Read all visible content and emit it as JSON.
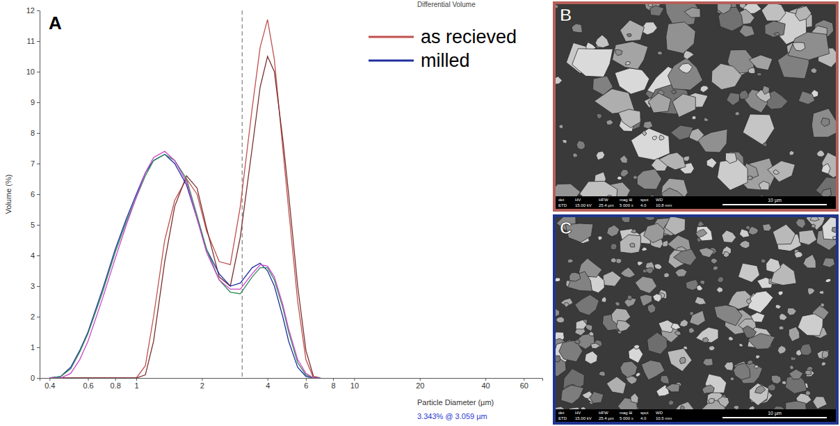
{
  "chart_data": {
    "type": "line",
    "panel_label": "A",
    "title": "Differential Volume",
    "x_label": "Particle Diameter (µm)",
    "y_label": "Volume (%)",
    "log": "x",
    "grid": false,
    "legend": "top-right",
    "xlim": [
      0.36,
      73
    ],
    "ylim": [
      0,
      12
    ],
    "xticks": [
      0.4,
      0.6,
      0.8,
      1,
      2,
      4,
      6,
      8,
      10,
      20,
      40,
      60
    ],
    "yticks": [
      0,
      1,
      2,
      3,
      4,
      5,
      6,
      7,
      8,
      9,
      10,
      11,
      12
    ],
    "x": [
      0.4,
      0.45,
      0.5,
      0.55,
      0.6,
      0.7,
      0.8,
      0.9,
      1.0,
      1.1,
      1.2,
      1.35,
      1.5,
      1.7,
      1.9,
      2.1,
      2.4,
      2.7,
      3.0,
      3.4,
      3.7,
      4.0,
      4.3,
      4.7,
      5.0,
      5.5,
      6.0,
      6.5,
      7.0
    ],
    "series": [
      {
        "name": "as recieved",
        "color": "#c0504d",
        "values": [
          0,
          0,
          0,
          0,
          0,
          0,
          0,
          0,
          0,
          0.4,
          2.0,
          4.5,
          5.8,
          6.5,
          6.0,
          4.8,
          3.8,
          3.7,
          5.6,
          8.8,
          10.8,
          11.7,
          10.4,
          7.5,
          5.5,
          2.5,
          0.6,
          0,
          0
        ]
      },
      {
        "color": "#7a2e2e",
        "values": [
          0,
          0,
          0,
          0,
          0,
          0,
          0,
          0,
          0,
          0.1,
          1.2,
          3.8,
          5.6,
          6.6,
          6.2,
          4.9,
          3.3,
          3.0,
          4.6,
          7.5,
          9.5,
          10.5,
          10.0,
          7.8,
          6.0,
          3.0,
          0.9,
          0.05,
          0
        ]
      },
      {
        "name": "milled",
        "color": "#1f2fa0",
        "values": [
          0,
          0.05,
          0.35,
          0.9,
          1.5,
          2.9,
          4.2,
          5.2,
          6.0,
          6.7,
          7.1,
          7.3,
          7.0,
          6.3,
          5.2,
          4.2,
          3.4,
          3.0,
          3.1,
          3.6,
          3.75,
          3.5,
          3.0,
          2.0,
          1.2,
          0.35,
          0.05,
          0,
          0
        ]
      },
      {
        "color": "#2e8b57",
        "values": [
          0,
          0.05,
          0.3,
          0.85,
          1.45,
          2.8,
          4.1,
          5.1,
          5.9,
          6.6,
          7.1,
          7.3,
          7.1,
          6.5,
          5.3,
          4.2,
          3.2,
          2.8,
          2.75,
          3.3,
          3.6,
          3.6,
          3.2,
          2.3,
          1.5,
          0.5,
          0.1,
          0,
          0
        ]
      },
      {
        "color": "#cc44cc",
        "values": [
          0,
          0,
          0.15,
          0.6,
          1.2,
          2.6,
          3.9,
          5.0,
          5.9,
          6.7,
          7.2,
          7.4,
          7.1,
          6.4,
          5.2,
          4.1,
          3.2,
          2.9,
          2.9,
          3.4,
          3.7,
          3.65,
          3.3,
          2.4,
          1.6,
          0.6,
          0.15,
          0,
          0
        ]
      }
    ],
    "annotations": [
      {
        "x": 3.059,
        "text": "3.343% @ 3.059 µm",
        "color": "#2a3bd0"
      }
    ]
  },
  "images": [
    {
      "label": "B",
      "border_color": "#b5605a",
      "info_header": [
        "det",
        "HV",
        "HFW",
        "mag ⊞",
        "spot",
        "WD"
      ],
      "info_values": [
        "ETD",
        "15.00 kV",
        "25.4 µm",
        "5 000 x",
        "4.0",
        "10.8 mm"
      ],
      "scale_bar": "10 µm"
    },
    {
      "label": "C",
      "border_color": "#1f3590",
      "info_header": [
        "det",
        "HV",
        "HFW",
        "mag ⊞",
        "spot",
        "WD"
      ],
      "info_values": [
        "ETD",
        "15.00 kV",
        "25.4 µm",
        "5 000 x",
        "4.0",
        "10.5 mm"
      ],
      "scale_bar": "10 µm"
    }
  ]
}
